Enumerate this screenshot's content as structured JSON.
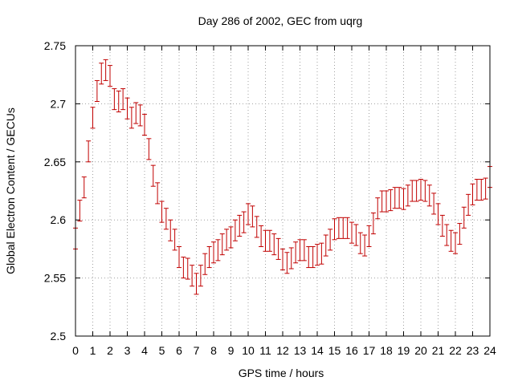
{
  "chart_data": {
    "type": "scatter",
    "title": "Day 286 of 2002, GEC from uqrg",
    "xlabel": "GPS time / hours",
    "ylabel": "Global Electron Content / GECUs",
    "xlim": [
      0,
      24
    ],
    "ylim": [
      2.5,
      2.75
    ],
    "xticks": [
      0,
      1,
      2,
      3,
      4,
      5,
      6,
      7,
      8,
      9,
      10,
      11,
      12,
      13,
      14,
      15,
      16,
      17,
      18,
      19,
      20,
      21,
      22,
      23,
      24
    ],
    "yticks": [
      2.5,
      2.55,
      2.6,
      2.65,
      2.7,
      2.75
    ],
    "ytick_labels": [
      "2.5",
      "2.55",
      "2.6",
      "2.65",
      "2.7",
      "2.75"
    ],
    "grid": true,
    "series_color": "#c00000",
    "error": 0.009,
    "x": [
      0.0,
      0.25,
      0.5,
      0.75,
      1.0,
      1.25,
      1.5,
      1.75,
      2.0,
      2.25,
      2.5,
      2.75,
      3.0,
      3.25,
      3.5,
      3.75,
      4.0,
      4.25,
      4.5,
      4.75,
      5.0,
      5.25,
      5.5,
      5.75,
      6.0,
      6.25,
      6.5,
      6.75,
      7.0,
      7.25,
      7.5,
      7.75,
      8.0,
      8.25,
      8.5,
      8.75,
      9.0,
      9.25,
      9.5,
      9.75,
      10.0,
      10.25,
      10.5,
      10.75,
      11.0,
      11.25,
      11.5,
      11.75,
      12.0,
      12.25,
      12.5,
      12.75,
      13.0,
      13.25,
      13.5,
      13.75,
      14.0,
      14.25,
      14.5,
      14.75,
      15.0,
      15.25,
      15.5,
      15.75,
      16.0,
      16.25,
      16.5,
      16.75,
      17.0,
      17.25,
      17.5,
      17.75,
      18.0,
      18.25,
      18.5,
      18.75,
      19.0,
      19.25,
      19.5,
      19.75,
      20.0,
      20.25,
      20.5,
      20.75,
      21.0,
      21.25,
      21.5,
      21.75,
      22.0,
      22.25,
      22.5,
      22.75,
      23.0,
      23.25,
      23.5,
      23.75,
      24.0
    ],
    "y": [
      2.584,
      2.608,
      2.628,
      2.659,
      2.688,
      2.711,
      2.726,
      2.729,
      2.724,
      2.704,
      2.702,
      2.704,
      2.696,
      2.688,
      2.692,
      2.69,
      2.682,
      2.661,
      2.638,
      2.623,
      2.607,
      2.601,
      2.591,
      2.583,
      2.568,
      2.559,
      2.558,
      2.552,
      2.545,
      2.552,
      2.562,
      2.568,
      2.572,
      2.574,
      2.579,
      2.583,
      2.585,
      2.591,
      2.595,
      2.598,
      2.605,
      2.603,
      2.594,
      2.586,
      2.582,
      2.582,
      2.579,
      2.575,
      2.566,
      2.563,
      2.567,
      2.572,
      2.574,
      2.574,
      2.568,
      2.568,
      2.57,
      2.571,
      2.578,
      2.583,
      2.592,
      2.593,
      2.593,
      2.593,
      2.589,
      2.587,
      2.58,
      2.578,
      2.586,
      2.597,
      2.61,
      2.616,
      2.616,
      2.617,
      2.619,
      2.619,
      2.618,
      2.621,
      2.625,
      2.625,
      2.626,
      2.625,
      2.621,
      2.614,
      2.605,
      2.595,
      2.587,
      2.582,
      2.58,
      2.588,
      2.602,
      2.613,
      2.622,
      2.626,
      2.626,
      2.627,
      2.637
    ]
  }
}
